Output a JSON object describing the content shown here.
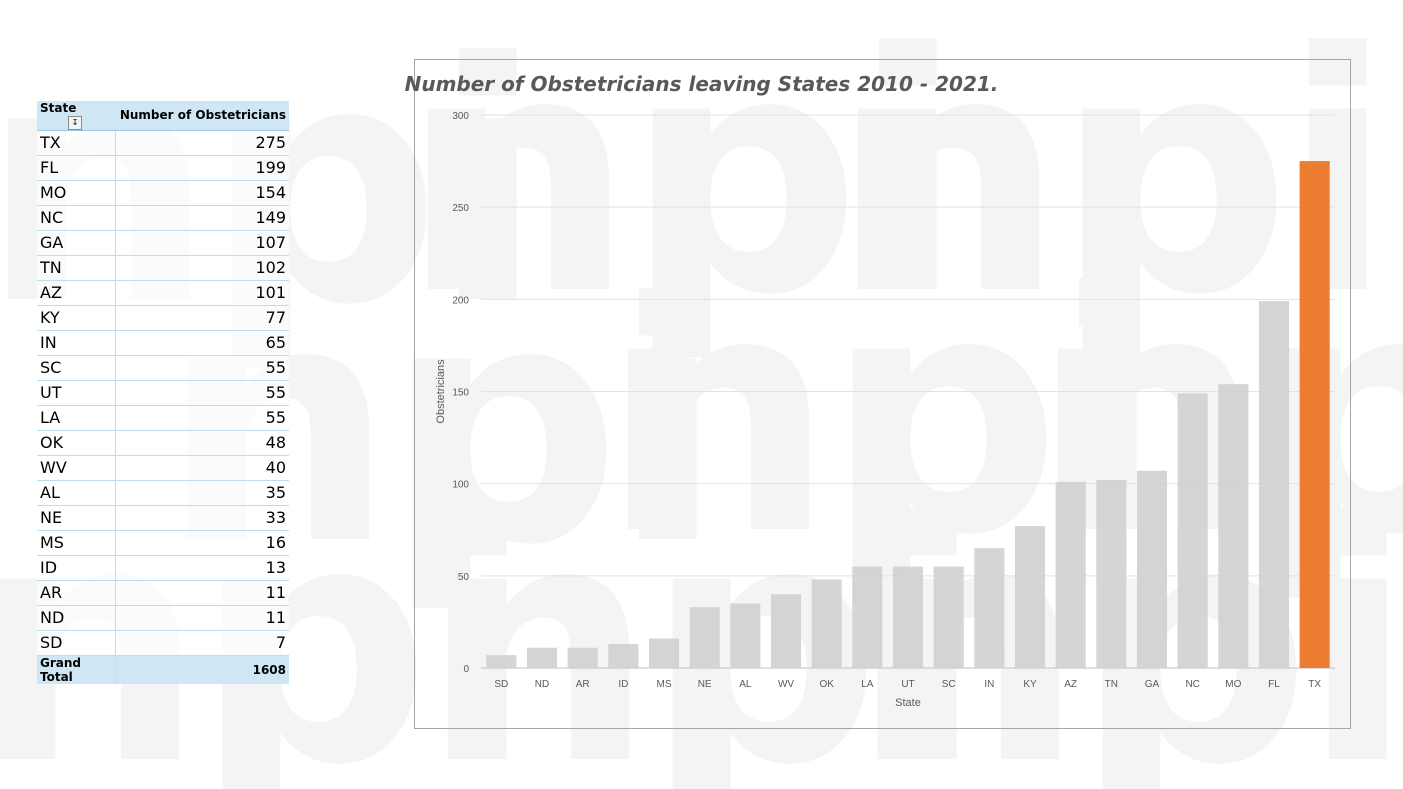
{
  "table": {
    "header_state": "State",
    "header_value": "Number of Obstetricians",
    "rows": [
      {
        "state": "TX",
        "value": "275"
      },
      {
        "state": "FL",
        "value": "199"
      },
      {
        "state": "MO",
        "value": "154"
      },
      {
        "state": "NC",
        "value": "149"
      },
      {
        "state": "GA",
        "value": "107"
      },
      {
        "state": "TN",
        "value": "102"
      },
      {
        "state": "AZ",
        "value": "101"
      },
      {
        "state": "KY",
        "value": "77"
      },
      {
        "state": "IN",
        "value": "65"
      },
      {
        "state": "SC",
        "value": "55"
      },
      {
        "state": "UT",
        "value": "55"
      },
      {
        "state": "LA",
        "value": "55"
      },
      {
        "state": "OK",
        "value": "48"
      },
      {
        "state": "WV",
        "value": "40"
      },
      {
        "state": "AL",
        "value": "35"
      },
      {
        "state": "NE",
        "value": "33"
      },
      {
        "state": "MS",
        "value": "16"
      },
      {
        "state": "ID",
        "value": "13"
      },
      {
        "state": "AR",
        "value": "11"
      },
      {
        "state": "ND",
        "value": "11"
      },
      {
        "state": "SD",
        "value": "7"
      }
    ],
    "total_label": "Grand Total",
    "total_value": "1608",
    "header_fill": "#cfe7f5"
  },
  "chart_data": {
    "type": "bar",
    "title": "Number of Obstetricians leaving States 2010 - 2021.",
    "xlabel": "State",
    "ylabel": "Obstetricians",
    "categories": [
      "SD",
      "ND",
      "AR",
      "ID",
      "MS",
      "NE",
      "AL",
      "WV",
      "OK",
      "LA",
      "UT",
      "SC",
      "IN",
      "KY",
      "AZ",
      "TN",
      "GA",
      "NC",
      "MO",
      "FL",
      "TX"
    ],
    "values": [
      7,
      11,
      11,
      13,
      16,
      33,
      35,
      40,
      48,
      55,
      55,
      55,
      65,
      77,
      101,
      102,
      107,
      149,
      154,
      199,
      275
    ],
    "ylim": [
      0,
      300
    ],
    "yticks": [
      0,
      50,
      100,
      150,
      200,
      250,
      300
    ],
    "grid": true,
    "bar_color": "#d0d0d0",
    "highlight_category": "TX",
    "highlight_color": "#ed7d31"
  }
}
